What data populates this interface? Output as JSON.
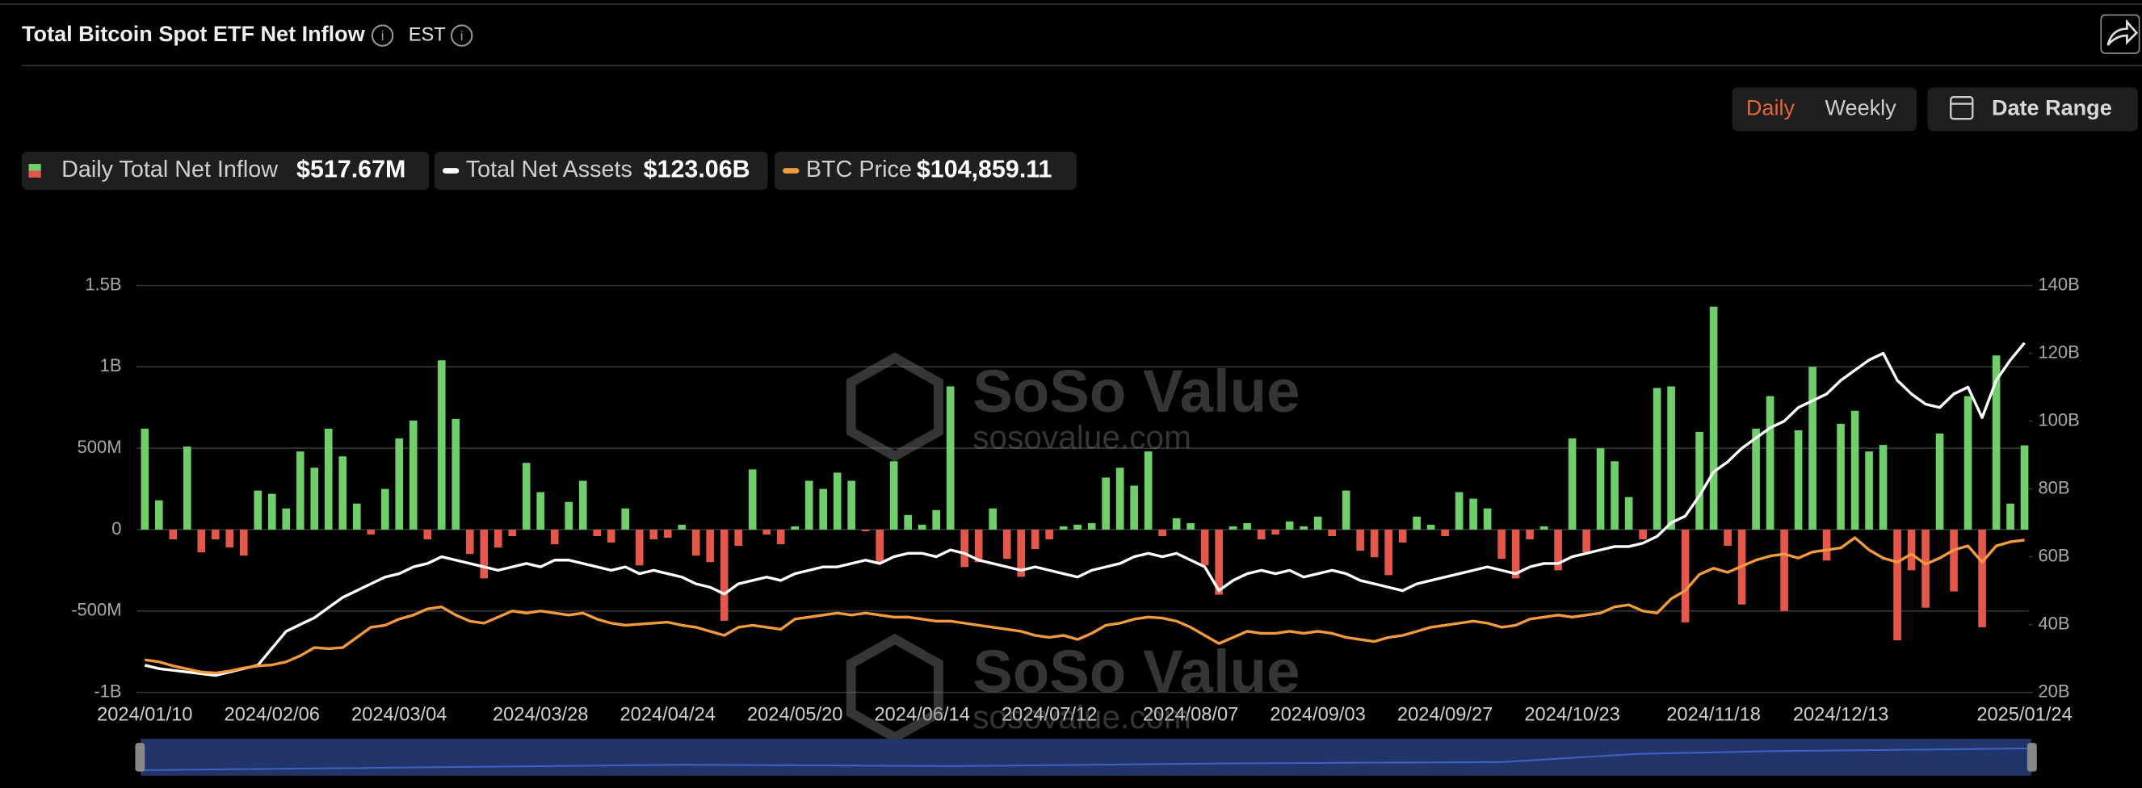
{
  "header": {
    "title": "Total Bitcoin Spot ETF Net Inflow",
    "timezone": "EST",
    "buttons": [
      "Daily",
      "Weekly"
    ],
    "date_range": "Date Range"
  },
  "watermark": {
    "name": "SoSo Value",
    "url": "sosovalue.com"
  },
  "chart_data": {
    "type": "bar",
    "categories": [
      "2024/01/10",
      null,
      null,
      null,
      null,
      null,
      null,
      null,
      null,
      "2024/02/06",
      null,
      null,
      null,
      null,
      null,
      null,
      null,
      null,
      "2024/03/04",
      null,
      null,
      null,
      null,
      null,
      null,
      null,
      null,
      null,
      "2024/03/28",
      null,
      null,
      null,
      null,
      null,
      null,
      null,
      null,
      "2024/04/24",
      null,
      null,
      null,
      null,
      null,
      null,
      null,
      null,
      "2024/05/20",
      null,
      null,
      null,
      null,
      null,
      null,
      null,
      null,
      "2024/06/14",
      null,
      null,
      null,
      null,
      null,
      null,
      null,
      null,
      "2024/07/12",
      null,
      null,
      null,
      null,
      null,
      null,
      null,
      null,
      null,
      "2024/08/07",
      null,
      null,
      null,
      null,
      null,
      null,
      null,
      null,
      "2024/09/03",
      null,
      null,
      null,
      null,
      null,
      null,
      null,
      null,
      "2024/09/27",
      null,
      null,
      null,
      null,
      null,
      null,
      null,
      null,
      "2024/10/23",
      null,
      null,
      null,
      null,
      null,
      null,
      null,
      null,
      null,
      "2024/11/18",
      null,
      null,
      null,
      null,
      null,
      null,
      null,
      null,
      "2024/12/13",
      null,
      null,
      null,
      null,
      null,
      null,
      null,
      null,
      null,
      null,
      null,
      null,
      "2025/01/24"
    ],
    "series": [
      {
        "name": "Daily Total Net Inflow",
        "latest_label": "$517.67M",
        "color": "#6fcf6a",
        "negative_color": "#e5574b",
        "axis": "y",
        "values": [
          620,
          180,
          -60,
          510,
          -140,
          -60,
          -110,
          -160,
          240,
          220,
          130,
          480,
          380,
          620,
          450,
          160,
          -30,
          250,
          560,
          670,
          -60,
          1040,
          680,
          -150,
          -300,
          -110,
          -40,
          410,
          230,
          -90,
          170,
          300,
          -40,
          -80,
          130,
          -220,
          -60,
          -50,
          30,
          -160,
          -200,
          -560,
          -100,
          370,
          -30,
          -90,
          20,
          300,
          250,
          350,
          300,
          -10,
          -200,
          420,
          90,
          30,
          120,
          880,
          -230,
          -200,
          130,
          -180,
          -290,
          -120,
          -60,
          20,
          30,
          40,
          320,
          380,
          270,
          480,
          -40,
          70,
          40,
          -220,
          -400,
          20,
          40,
          -60,
          -30,
          50,
          20,
          80,
          -40,
          240,
          -130,
          -170,
          -280,
          -80,
          80,
          30,
          -40,
          230,
          190,
          130,
          -180,
          -300,
          -60,
          20,
          -250,
          560,
          -140,
          500,
          420,
          200,
          -60,
          870,
          880,
          -570,
          600,
          1370,
          -100,
          -460,
          620,
          820,
          -500,
          610,
          1000,
          -190,
          650,
          730,
          480,
          520,
          -680,
          -250,
          -480,
          590,
          -380,
          820,
          -600,
          1070,
          160,
          517.67
        ]
      },
      {
        "name": "Total Net Assets",
        "latest_label": "$123.06B",
        "color": "#ffffff",
        "axis": "y2",
        "values": [
          28,
          27,
          26.5,
          26,
          25.5,
          25,
          26,
          27,
          28,
          33,
          38,
          40,
          42,
          45,
          48,
          50,
          52,
          54,
          55,
          57,
          58,
          60,
          59,
          58,
          57,
          56,
          57,
          58,
          57,
          59,
          59,
          58,
          57,
          56,
          57,
          55,
          56,
          55,
          54,
          52,
          51,
          49,
          52,
          53,
          54,
          53,
          55,
          56,
          57,
          57,
          58,
          59,
          58,
          60,
          61,
          61,
          60,
          62,
          61,
          59,
          58,
          57,
          56,
          57,
          56,
          55,
          54,
          56,
          57,
          58,
          60,
          61,
          60,
          61,
          59,
          57,
          50,
          53,
          55,
          56,
          55,
          56,
          54,
          55,
          56,
          55,
          53,
          52,
          51,
          50,
          52,
          53,
          54,
          55,
          56,
          57,
          56,
          55,
          57,
          58,
          58,
          60,
          61,
          62,
          63,
          63,
          64,
          66,
          70,
          72,
          78,
          85,
          88,
          92,
          95,
          98,
          100,
          104,
          106,
          108,
          112,
          115,
          118,
          120,
          112,
          108,
          105,
          104,
          108,
          110,
          101,
          112,
          118,
          123.06
        ]
      },
      {
        "name": "BTC Price",
        "latest_label": "$104,859.11",
        "color": "#f39a3c",
        "axis": "y3",
        "values": [
          46000,
          45000,
          43000,
          41500,
          40000,
          39500,
          40500,
          42000,
          43000,
          43500,
          45000,
          48000,
          52000,
          51500,
          52000,
          57000,
          62000,
          63000,
          66000,
          68000,
          71000,
          72000,
          68000,
          65000,
          64000,
          67000,
          70000,
          69000,
          70000,
          69000,
          68000,
          69000,
          66000,
          64000,
          63000,
          63500,
          64000,
          64500,
          63000,
          62000,
          60000,
          58000,
          62000,
          63000,
          62000,
          61000,
          66000,
          67000,
          68000,
          69000,
          68000,
          69000,
          68000,
          67000,
          67000,
          66000,
          65000,
          65000,
          64000,
          63000,
          62000,
          61000,
          60000,
          58000,
          57000,
          58000,
          56000,
          59000,
          63000,
          64000,
          66000,
          67000,
          66500,
          65000,
          62000,
          58000,
          54000,
          57000,
          60000,
          59000,
          59000,
          60000,
          59000,
          60000,
          59000,
          57000,
          56000,
          55000,
          57000,
          58000,
          60000,
          62000,
          63000,
          64000,
          65000,
          64000,
          62000,
          63000,
          66000,
          67000,
          68000,
          67000,
          68000,
          69000,
          72000,
          73000,
          70000,
          69000,
          76000,
          80000,
          88000,
          91000,
          89000,
          92000,
          95000,
          97000,
          98000,
          96000,
          99000,
          100000,
          101000,
          106000,
          100000,
          96000,
          94000,
          98000,
          93000,
          96000,
          100000,
          102000,
          94000,
          102000,
          104000,
          104859.11
        ]
      }
    ],
    "ylim": [
      -1000,
      1500
    ],
    "yticks": [
      {
        "value": -1000,
        "label": "-1B"
      },
      {
        "value": -500,
        "label": "-500M"
      },
      0,
      {
        "value": 500,
        "label": "500M"
      },
      {
        "value": 1000,
        "label": "1B"
      },
      {
        "value": 1500,
        "label": "1.5B"
      }
    ],
    "y2lim": [
      20,
      140
    ],
    "y2ticks": [
      {
        "value": 20,
        "label": "20B"
      },
      {
        "value": 40,
        "label": "40B"
      },
      {
        "value": 60,
        "label": "60B"
      },
      {
        "value": 80,
        "label": "80B"
      },
      {
        "value": 100,
        "label": "100B"
      },
      {
        "value": 120,
        "label": "120B"
      },
      {
        "value": 140,
        "label": "140B"
      }
    ],
    "y3lim": [
      30000,
      230000
    ],
    "grid": true
  }
}
